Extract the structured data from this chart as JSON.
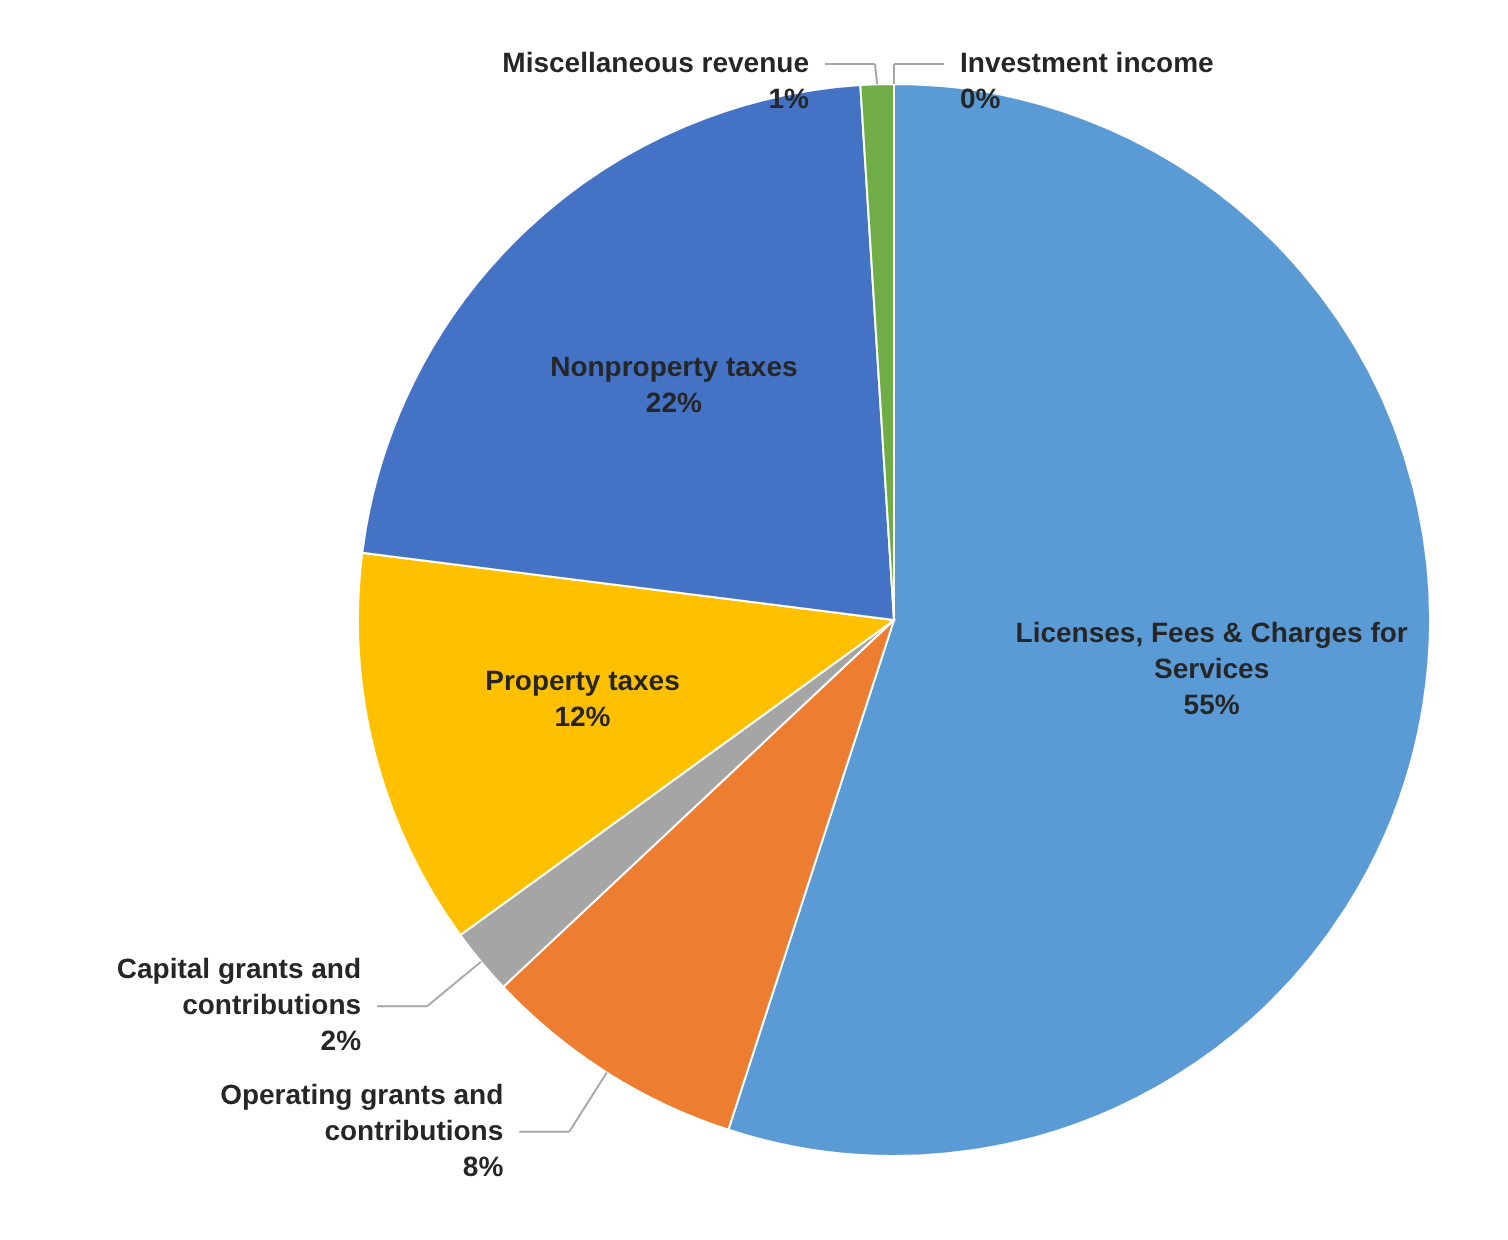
{
  "chart_data": {
    "type": "pie",
    "categories": [
      "Investment income",
      "Licenses, Fees & Charges for Services",
      "Operating grants and contributions",
      "Capital grants and contributions",
      "Property taxes",
      "Nonproperty taxes",
      "Miscellaneous revenue"
    ],
    "values": [
      0,
      55,
      8,
      2,
      12,
      22,
      1
    ],
    "colors": [
      "#255e91",
      "#5b9bd5",
      "#ed7d31",
      "#a5a5a5",
      "#ffc000",
      "#4472c4",
      "#70ad47"
    ],
    "value_labels": [
      "0%",
      "55%",
      "8%",
      "2%",
      "12%",
      "22%",
      "1%"
    ]
  }
}
